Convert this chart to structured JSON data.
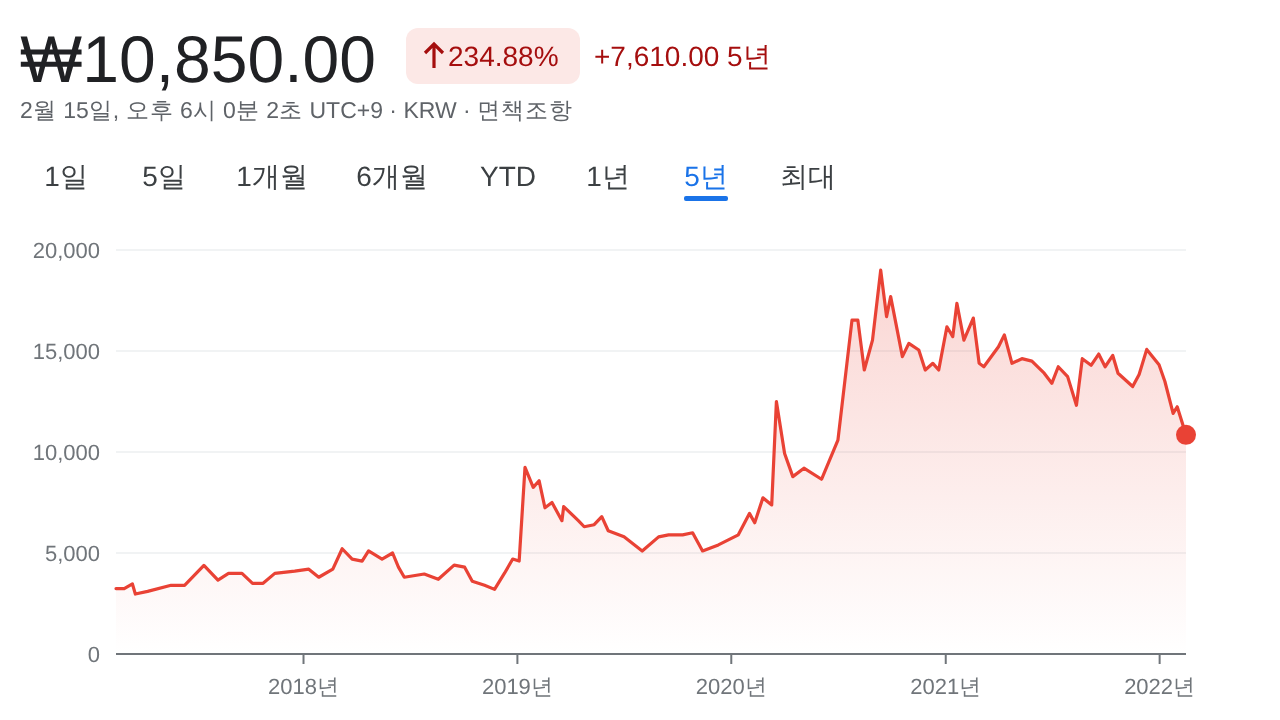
{
  "chart_data": {
    "type": "area",
    "title": "₩10,850.00",
    "subtitle": "2월 15일, 오후 6시 0분 2초 UTC+9 · KRW · 면책조항",
    "annotations": [
      "234.88%",
      "+7,610.00 5년",
      "1일",
      "5일",
      "1개월",
      "6개월",
      "YTD",
      "1년",
      "5년",
      "최대"
    ],
    "x": [
      "2017-02-15",
      "2017-03-01",
      "2017-03-15",
      "2017-03-20",
      "2017-04-10",
      "2017-05-20",
      "2017-06-12",
      "2017-07-15",
      "2017-08-08",
      "2017-08-26",
      "2017-09-18",
      "2017-10-06",
      "2017-10-24",
      "2017-11-13",
      "2017-12-17",
      "2018-01-10",
      "2018-01-27",
      "2018-02-20",
      "2018-03-08",
      "2018-03-25",
      "2018-04-11",
      "2018-04-22",
      "2018-05-15",
      "2018-06-02",
      "2018-06-12",
      "2018-06-22",
      "2018-07-26",
      "2018-08-19",
      "2018-09-15",
      "2018-10-03",
      "2018-10-16",
      "2018-11-06",
      "2018-11-23",
      "2018-12-10",
      "2018-12-24",
      "2019-01-04",
      "2019-01-14",
      "2019-01-28",
      "2019-02-07",
      "2019-02-17",
      "2019-03-01",
      "2019-03-18",
      "2019-03-21",
      "2019-04-15",
      "2019-04-25",
      "2019-05-12",
      "2019-05-25",
      "2019-06-05",
      "2019-07-02",
      "2019-08-02",
      "2019-08-30",
      "2019-09-16",
      "2019-10-10",
      "2019-10-27",
      "2019-11-13",
      "2019-12-10",
      "2020-01-13",
      "2020-02-01",
      "2020-02-10",
      "2020-02-24",
      "2020-03-10",
      "2020-03-18",
      "2020-04-01",
      "2020-04-15",
      "2020-05-04",
      "2020-06-03",
      "2020-07-01",
      "2020-07-25",
      "2020-08-04",
      "2020-08-15",
      "2020-08-29",
      "2020-09-12",
      "2020-09-22",
      "2020-09-29",
      "2020-10-19",
      "2020-10-30",
      "2020-11-16",
      "2020-11-27",
      "2020-12-10",
      "2020-12-20",
      "2021-01-03",
      "2021-01-13",
      "2021-01-20",
      "2021-02-01",
      "2021-02-17",
      "2021-02-27",
      "2021-03-07",
      "2021-04-01",
      "2021-04-11",
      "2021-04-24",
      "2021-05-11",
      "2021-05-28",
      "2021-06-18",
      "2021-07-01",
      "2021-07-12",
      "2021-07-28",
      "2021-08-12",
      "2021-08-22",
      "2021-09-06",
      "2021-09-19",
      "2021-09-30",
      "2021-10-13",
      "2021-10-22",
      "2021-11-16",
      "2021-11-27",
      "2021-12-10",
      "2021-12-31",
      "2022-01-10",
      "2022-01-24",
      "2022-01-31",
      "2022-02-15"
    ],
    "series": [
      {
        "color": "#e94235",
        "values": [
          3240,
          3240,
          3470,
          2970,
          3100,
          3400,
          3400,
          4390,
          3660,
          3990,
          3990,
          3500,
          3500,
          3990,
          4100,
          4200,
          3800,
          4200,
          5210,
          4700,
          4600,
          5100,
          4700,
          5000,
          4300,
          3800,
          3960,
          3700,
          4400,
          4300,
          3600,
          3400,
          3200,
          4000,
          4700,
          4600,
          9240,
          8250,
          8580,
          7240,
          7500,
          6600,
          7300,
          6600,
          6300,
          6400,
          6800,
          6100,
          5800,
          5100,
          5800,
          5900,
          5900,
          6000,
          5100,
          5400,
          5900,
          6960,
          6500,
          7730,
          7380,
          12500,
          9930,
          8780,
          9200,
          8650,
          10590,
          16530,
          16530,
          14060,
          15540,
          19000,
          16700,
          17690,
          14720,
          15380,
          15050,
          14060,
          14390,
          14060,
          16200,
          15710,
          17360,
          15540,
          16630,
          14390,
          14220,
          15210,
          15800,
          14390,
          14620,
          14500,
          13900,
          13400,
          14220,
          13730,
          12310,
          14620,
          14290,
          14850,
          14220,
          14780,
          13900,
          13240,
          13840,
          15080,
          14320,
          13490,
          11910,
          12240,
          10850
        ]
      }
    ],
    "xlim": [
      "2017-02-15",
      "2022-02-15"
    ],
    "xticks": [
      {
        "value": "2018-01-01",
        "label": "2018년"
      },
      {
        "value": "2019-01-01",
        "label": "2019년"
      },
      {
        "value": "2020-01-01",
        "label": "2020년"
      },
      {
        "value": "2021-01-01",
        "label": "2021년"
      },
      {
        "value": "2022-01-01",
        "label": "2022년"
      }
    ],
    "ylim": [
      0,
      20000
    ],
    "yticks": [
      {
        "value": 0,
        "label": "0"
      },
      {
        "value": 5000,
        "label": "5,000"
      },
      {
        "value": 10000,
        "label": "10,000"
      },
      {
        "value": 15000,
        "label": "15,000"
      },
      {
        "value": 20000,
        "label": "20,000"
      }
    ],
    "grid": "y",
    "line_style": "solid"
  }
}
